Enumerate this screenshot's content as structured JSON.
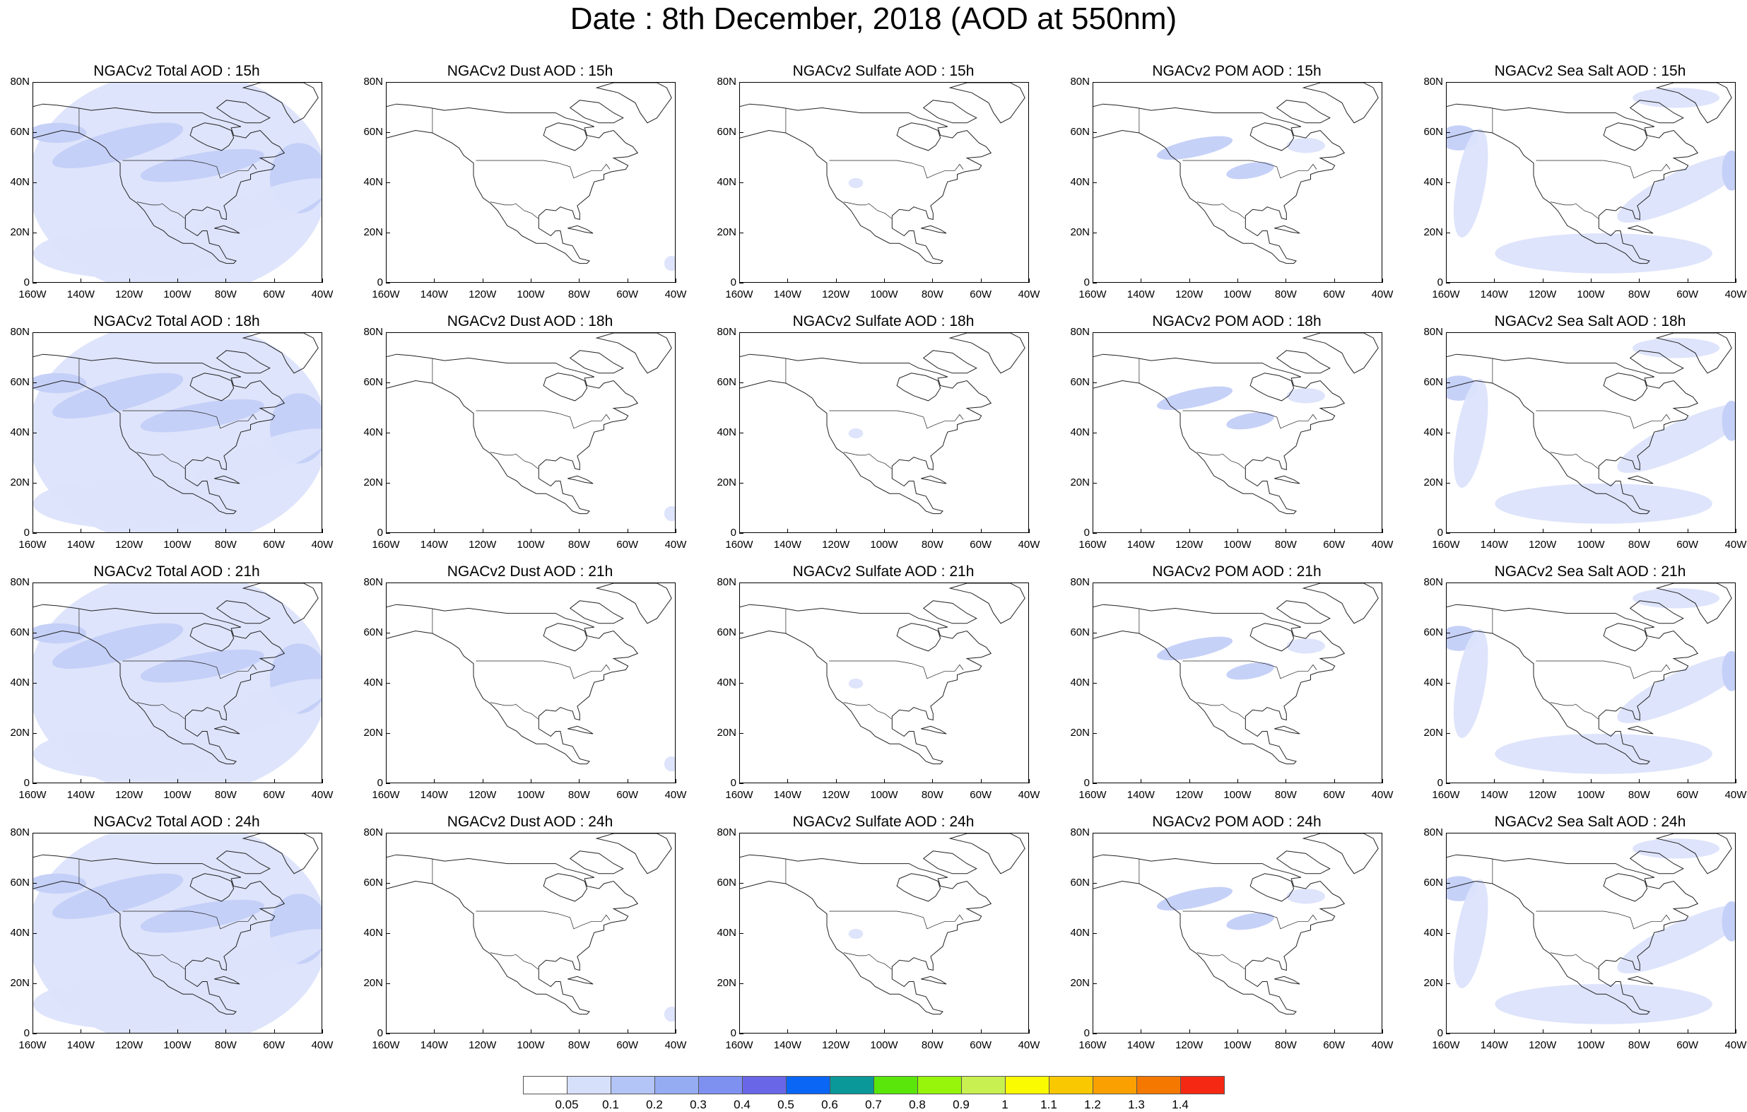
{
  "title": "Date : 8th December, 2018 (AOD at 550nm)",
  "x_ticks": [
    "160W",
    "140W",
    "120W",
    "100W",
    "80W",
    "60W",
    "40W"
  ],
  "y_ticks": [
    "0",
    "20N",
    "40N",
    "60N",
    "80N"
  ],
  "colors": {
    "aod_light": "#dce3fb",
    "aod_low": "#c3cff8",
    "aod_mid": "#a9bbf6",
    "coastline": "#222222"
  },
  "rows": [
    {
      "hour": "15h",
      "panels": [
        {
          "title": "NGACv2 Total AOD : 15h",
          "species": "total"
        },
        {
          "title": "NGACv2 Dust AOD : 15h",
          "species": "dust"
        },
        {
          "title": "NGACv2 Sulfate AOD : 15h",
          "species": "sulfate"
        },
        {
          "title": "NGACv2 POM AOD : 15h",
          "species": "pom"
        },
        {
          "title": "NGACv2 Sea Salt AOD : 15h",
          "species": "seasalt"
        }
      ]
    },
    {
      "hour": "18h",
      "panels": [
        {
          "title": "NGACv2 Total AOD : 18h",
          "species": "total"
        },
        {
          "title": "NGACv2 Dust AOD : 18h",
          "species": "dust"
        },
        {
          "title": "NGACv2 Sulfate AOD : 18h",
          "species": "sulfate"
        },
        {
          "title": "NGACv2 POM AOD : 18h",
          "species": "pom"
        },
        {
          "title": "NGACv2 Sea Salt AOD : 18h",
          "species": "seasalt"
        }
      ]
    },
    {
      "hour": "21h",
      "panels": [
        {
          "title": "NGACv2 Total AOD : 21h",
          "species": "total"
        },
        {
          "title": "NGACv2 Dust AOD : 21h",
          "species": "dust"
        },
        {
          "title": "NGACv2 Sulfate AOD : 21h",
          "species": "sulfate"
        },
        {
          "title": "NGACv2 POM AOD : 21h",
          "species": "pom"
        },
        {
          "title": "NGACv2 Sea Salt AOD : 21h",
          "species": "seasalt"
        }
      ]
    },
    {
      "hour": "24h",
      "panels": [
        {
          "title": "NGACv2 Total AOD : 24h",
          "species": "total"
        },
        {
          "title": "NGACv2 Dust AOD : 24h",
          "species": "dust"
        },
        {
          "title": "NGACv2 Sulfate AOD : 24h",
          "species": "sulfate"
        },
        {
          "title": "NGACv2 POM AOD : 24h",
          "species": "pom"
        },
        {
          "title": "NGACv2 Sea Salt  AOD : 24h",
          "species": "seasalt"
        }
      ]
    }
  ],
  "colorbar": {
    "labels": [
      "0.05",
      "0.1",
      "0.2",
      "0.3",
      "0.4",
      "0.5",
      "0.6",
      "0.7",
      "0.8",
      "0.9",
      "1",
      "1.1",
      "1.2",
      "1.3",
      "1.4"
    ],
    "colors": [
      "#ffffff",
      "#d7e0fa",
      "#b3c4f6",
      "#95acf3",
      "#7e90f0",
      "#6a66e8",
      "#0a66f5",
      "#0a9898",
      "#5ae60a",
      "#96f50a",
      "#c8f050",
      "#fafa00",
      "#fac800",
      "#faa000",
      "#f57800",
      "#f52814"
    ]
  }
}
